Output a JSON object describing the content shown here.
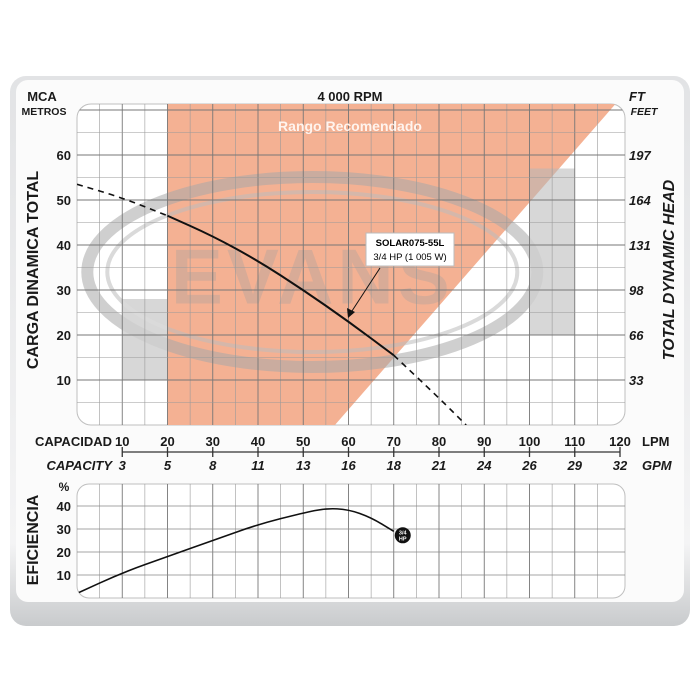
{
  "chart_data": [
    {
      "type": "line",
      "title": "4 000 RPM",
      "left_unit_top": "MCA",
      "left_unit": "METROS",
      "right_unit_top": "FT",
      "right_unit": "FEET",
      "ylabel": "CARGA  DINAMICA  TOTAL",
      "ylabel_right": "TOTAL  DYNAMIC  HEAD",
      "xlabel": "CAPACIDAD",
      "xlabel_unit": "LPM",
      "xlabel2": "CAPACITY",
      "xlabel2_unit": "GPM",
      "xlim": [
        0,
        120
      ],
      "ylim": [
        0,
        71
      ],
      "y_ticks": [
        "10",
        "20",
        "30",
        "40",
        "50",
        "60"
      ],
      "y_ticks_right": [
        "33",
        "66",
        "98",
        "131",
        "164",
        "197"
      ],
      "x_ticks": [
        "10",
        "20",
        "30",
        "40",
        "50",
        "60",
        "70",
        "80",
        "90",
        "100",
        "110",
        "120"
      ],
      "x_ticks_gpm": [
        "3",
        "5",
        "8",
        "11",
        "13",
        "16",
        "18",
        "21",
        "24",
        "26",
        "29",
        "32"
      ],
      "grid": true,
      "recommended_range": {
        "label": "Rango Recomendado",
        "lpm_start": 20,
        "diagonal_bottom_lpm": 57,
        "diagonal_top_lpm": 119,
        "color": "#f4b193"
      },
      "series": [
        {
          "name": "SOLAR075-55L",
          "subtitle": "3/4 HP (1 005 W)",
          "x": [
            0,
            10,
            20,
            30,
            40,
            50,
            60,
            70,
            80,
            86
          ],
          "y": [
            53.5,
            50.5,
            46.5,
            42,
            36.5,
            30,
            23,
            15.5,
            6,
            0
          ],
          "solid_range": [
            20,
            70
          ]
        }
      ],
      "watermark": "EVANS"
    },
    {
      "type": "line",
      "ylabel": "EFICIENCIA",
      "yunit": "%",
      "xlim": [
        0,
        120
      ],
      "ylim": [
        0,
        50
      ],
      "y_ticks": [
        "10",
        "20",
        "30",
        "40"
      ],
      "grid": true,
      "series": [
        {
          "name": "3/4 HP",
          "badge_top": "3/4",
          "badge_bottom": "HP",
          "x": [
            0,
            10,
            20,
            30,
            40,
            50,
            55,
            60,
            65,
            70
          ],
          "y": [
            2,
            11,
            18,
            25,
            32,
            37,
            39,
            38.5,
            35,
            29
          ]
        }
      ]
    }
  ]
}
